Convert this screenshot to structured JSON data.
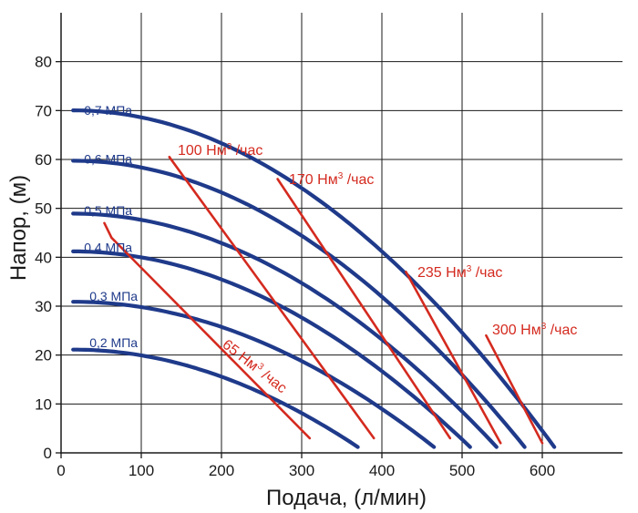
{
  "chart_data": {
    "type": "line",
    "title": "",
    "xlabel": "Подача, (л/мин)",
    "ylabel": "Напор, (м)",
    "xlim": [
      0,
      700
    ],
    "ylim": [
      0,
      90
    ],
    "xticks": [
      "0",
      "100",
      "200",
      "300",
      "400",
      "500",
      "600"
    ],
    "yticks": [
      "0",
      "10",
      "20",
      "30",
      "40",
      "50",
      "60",
      "70",
      "80"
    ],
    "grid": true,
    "pressure_curves": [
      {
        "name": "0,7 МПа",
        "label": "0,7 МПа",
        "x0": 15,
        "y0": 68,
        "x1": 615,
        "k": 0.03,
        "p": 2.0
      },
      {
        "name": "0,6 МПа",
        "label": "0,6 МПа",
        "x0": 15,
        "y0": 58,
        "x1": 578,
        "k": 0.03,
        "p": 2.0
      },
      {
        "name": "0,5 МПа",
        "label": "0,5 МПа",
        "x0": 15,
        "y0": 47.5,
        "x1": 543,
        "k": 0.03,
        "p": 2.0
      },
      {
        "name": "0,4 МПа",
        "label": "0,4 МПа",
        "x0": 15,
        "y0": 40,
        "x1": 510,
        "k": 0.03,
        "p": 2.0
      },
      {
        "name": "0,3 МПа",
        "label": "0,3 МПа",
        "x0": 15,
        "y0": 30,
        "x1": 465,
        "k": 0.03,
        "p": 2.0
      },
      {
        "name": "0,2 МПа",
        "label": "0,2 МПа",
        "x0": 15,
        "y0": 20.5,
        "x1": 370,
        "k": 0.03,
        "p": 2.0
      }
    ],
    "air_flow_lines": [
      {
        "name": "65 Нм³ /час",
        "label": "65 Нм",
        "sup": "3",
        "tail": " /час",
        "points": [
          [
            54,
            47
          ],
          [
            63,
            44
          ],
          [
            90,
            39.5
          ],
          [
            310,
            3
          ]
        ]
      },
      {
        "name": "100 Нм³ /час",
        "label": "100 Нм",
        "sup": "3",
        "tail": " /час",
        "points": [
          [
            135,
            60.5
          ],
          [
            390,
            3
          ]
        ]
      },
      {
        "name": "170 Нм³ /час",
        "label": "170 Нм",
        "sup": "3",
        "tail": " /час",
        "points": [
          [
            270,
            56
          ],
          [
            485,
            3
          ]
        ]
      },
      {
        "name": "235 Нм³ /час",
        "label": "235 Нм",
        "sup": "3",
        "tail": " /час",
        "points": [
          [
            430,
            37
          ],
          [
            548,
            2
          ]
        ]
      },
      {
        "name": "300 Нм³ /час",
        "label": "300 Нм",
        "sup": "3",
        "tail": " /час",
        "points": [
          [
            530,
            24
          ],
          [
            600,
            2
          ]
        ]
      }
    ],
    "colors": {
      "pressure": "#1f3a8a",
      "air": "#d42a1f",
      "grid": "#1a1a1a",
      "axis": "#1a1a1a"
    }
  }
}
